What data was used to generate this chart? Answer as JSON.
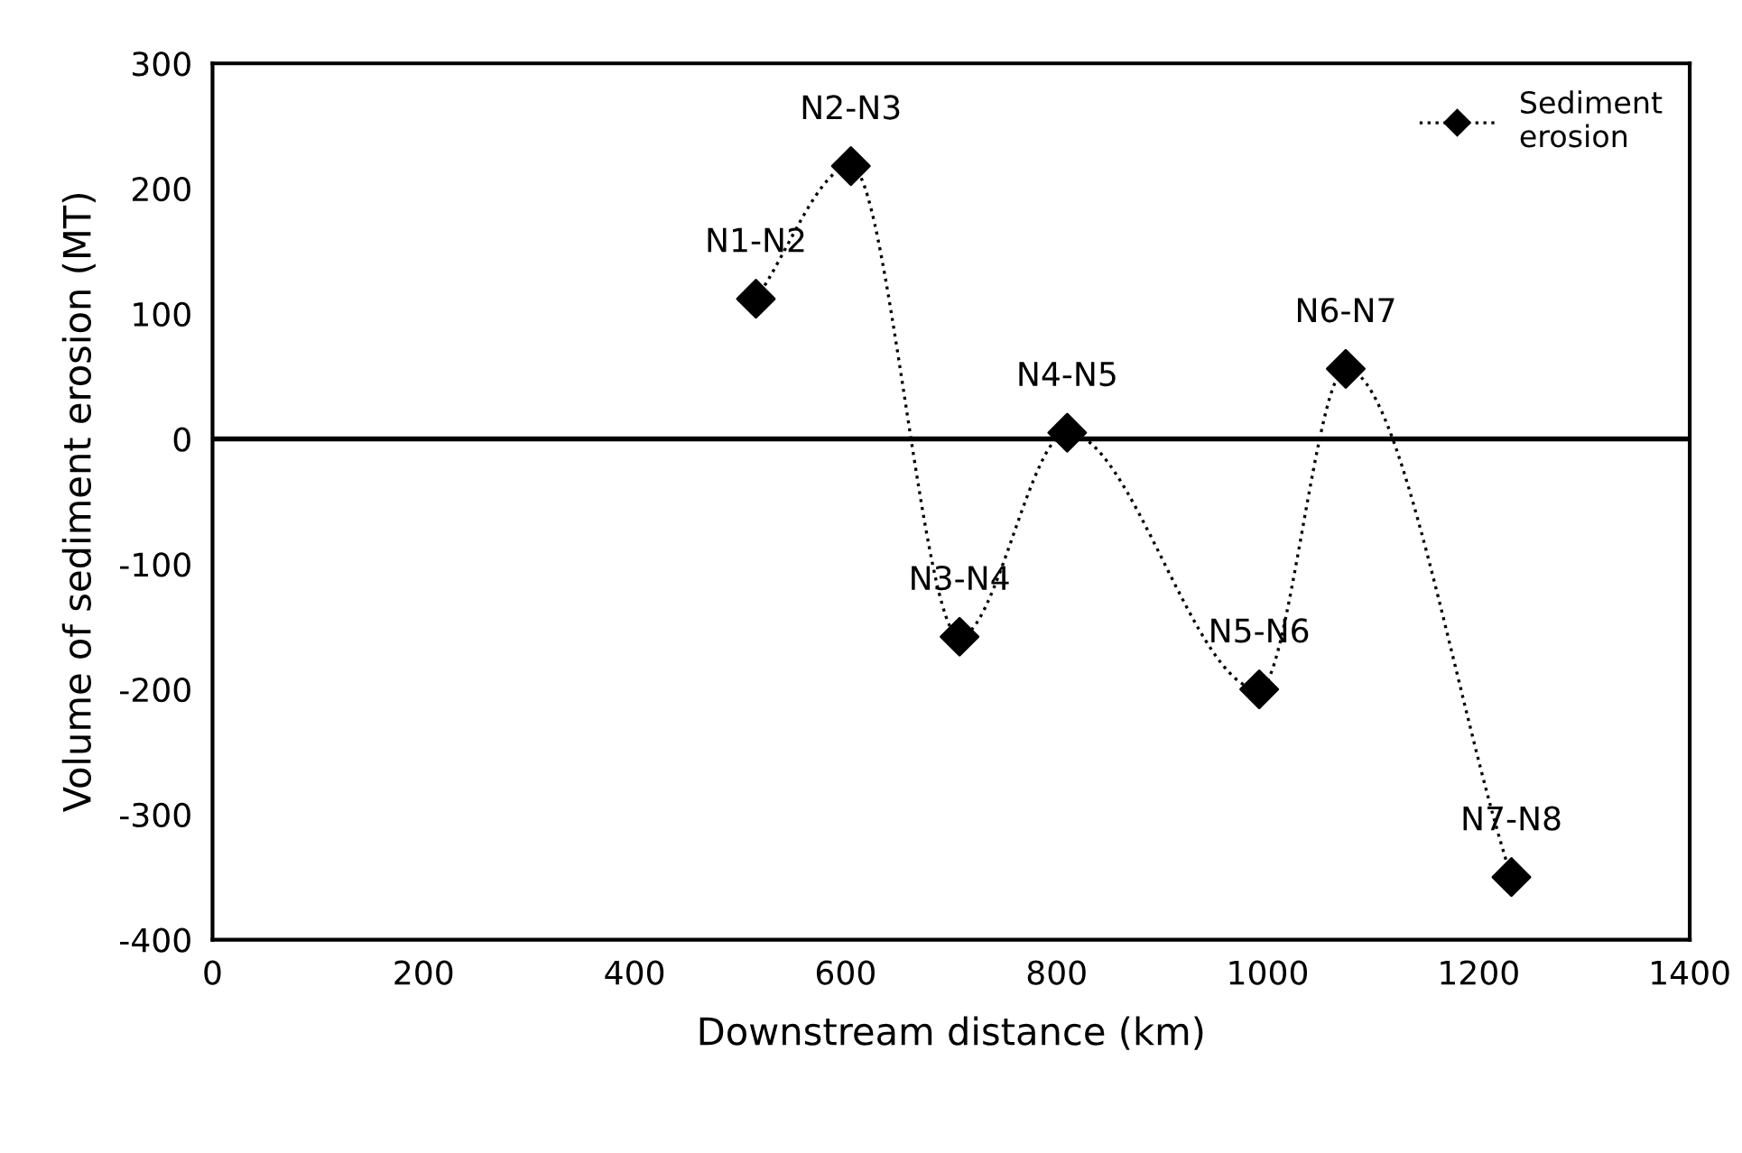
{
  "chart_data": {
    "type": "line",
    "xlabel": "Downstream distance (km)",
    "ylabel": "Volume of sediment erosion (MT)",
    "x": [
      515,
      605,
      708,
      810,
      992,
      1074,
      1231
    ],
    "series": [
      {
        "name": "Sediment\nerosion",
        "color": "#000000",
        "values": [
          112,
          218,
          -158,
          5,
          -200,
          56,
          -350
        ]
      }
    ],
    "xlim": [
      0,
      1400
    ],
    "xticks": [
      0,
      200,
      400,
      600,
      800,
      1000,
      1200,
      1400
    ],
    "ylim": [
      -400,
      300
    ],
    "yticks": [
      -400,
      -300,
      -200,
      -100,
      0,
      100,
      200,
      300
    ],
    "ref_lines": [
      {
        "axis": "y",
        "value": 0,
        "color": "#000000"
      }
    ],
    "annotations": [
      {
        "text": "N1-N2",
        "x": 515,
        "y": 112
      },
      {
        "text": "N2-N3",
        "x": 605,
        "y": 218
      },
      {
        "text": "N3-N4",
        "x": 708,
        "y": -158
      },
      {
        "text": "N4-N5",
        "x": 810,
        "y": 5
      },
      {
        "text": "N5-N6",
        "x": 992,
        "y": -200
      },
      {
        "text": "N6-N7",
        "x": 1074,
        "y": 56
      },
      {
        "text": "N7-N8",
        "x": 1231,
        "y": -350
      }
    ],
    "marker": "diamond",
    "line_style": "dotted",
    "legend": "top right",
    "grid": false
  }
}
